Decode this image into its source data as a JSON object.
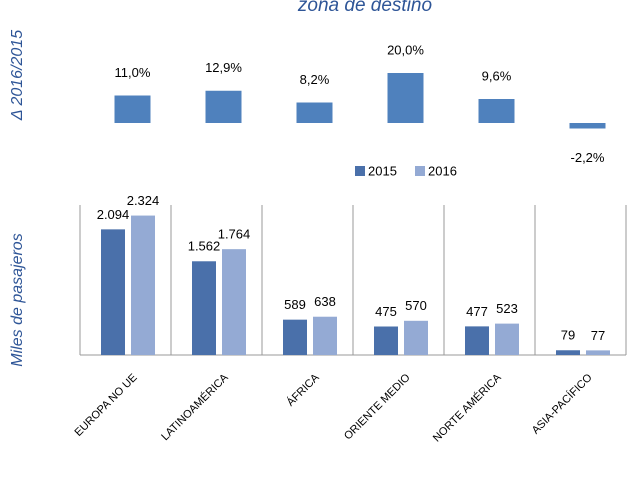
{
  "chart_data": [
    {
      "type": "bar",
      "title": "zona de destino",
      "y_label": "Δ 2016/2015",
      "categories": [
        "EUROPA NO UE",
        "LATINOAMÉRICA",
        "ÁFRICA",
        "ORIENTE MEDIO",
        "NORTE AMÉRICA",
        "ASIA-PACÍFICO"
      ],
      "values": [
        11.0,
        12.9,
        8.2,
        20.0,
        9.6,
        -2.2
      ],
      "value_labels": [
        "11,0%",
        "12,9%",
        "8,2%",
        "20,0%",
        "9,6%",
        "-2,2%"
      ],
      "color": "#4f81bd",
      "ylim": [
        -4,
        25
      ]
    },
    {
      "type": "grouped-bar",
      "y_label": "Miles de pasajeros",
      "categories": [
        "EUROPA NO UE",
        "LATINOAMÉRICA",
        "ÁFRICA",
        "ORIENTE MEDIO",
        "NORTE AMÉRICA",
        "ASIA-PACÍFICO"
      ],
      "series": [
        {
          "name": "2015",
          "color": "#4a70aa",
          "values": [
            2094,
            1562,
            589,
            475,
            477,
            79
          ],
          "value_labels": [
            "2.094",
            "1.562",
            "589",
            "475",
            "477",
            "79"
          ]
        },
        {
          "name": "2016",
          "color": "#94aad4",
          "values": [
            2324,
            1764,
            638,
            570,
            523,
            77
          ],
          "value_labels": [
            "2.324",
            "1.764",
            "638",
            "570",
            "523",
            "77"
          ]
        }
      ],
      "ylim": [
        0,
        2500
      ],
      "legend": "top-center"
    }
  ]
}
